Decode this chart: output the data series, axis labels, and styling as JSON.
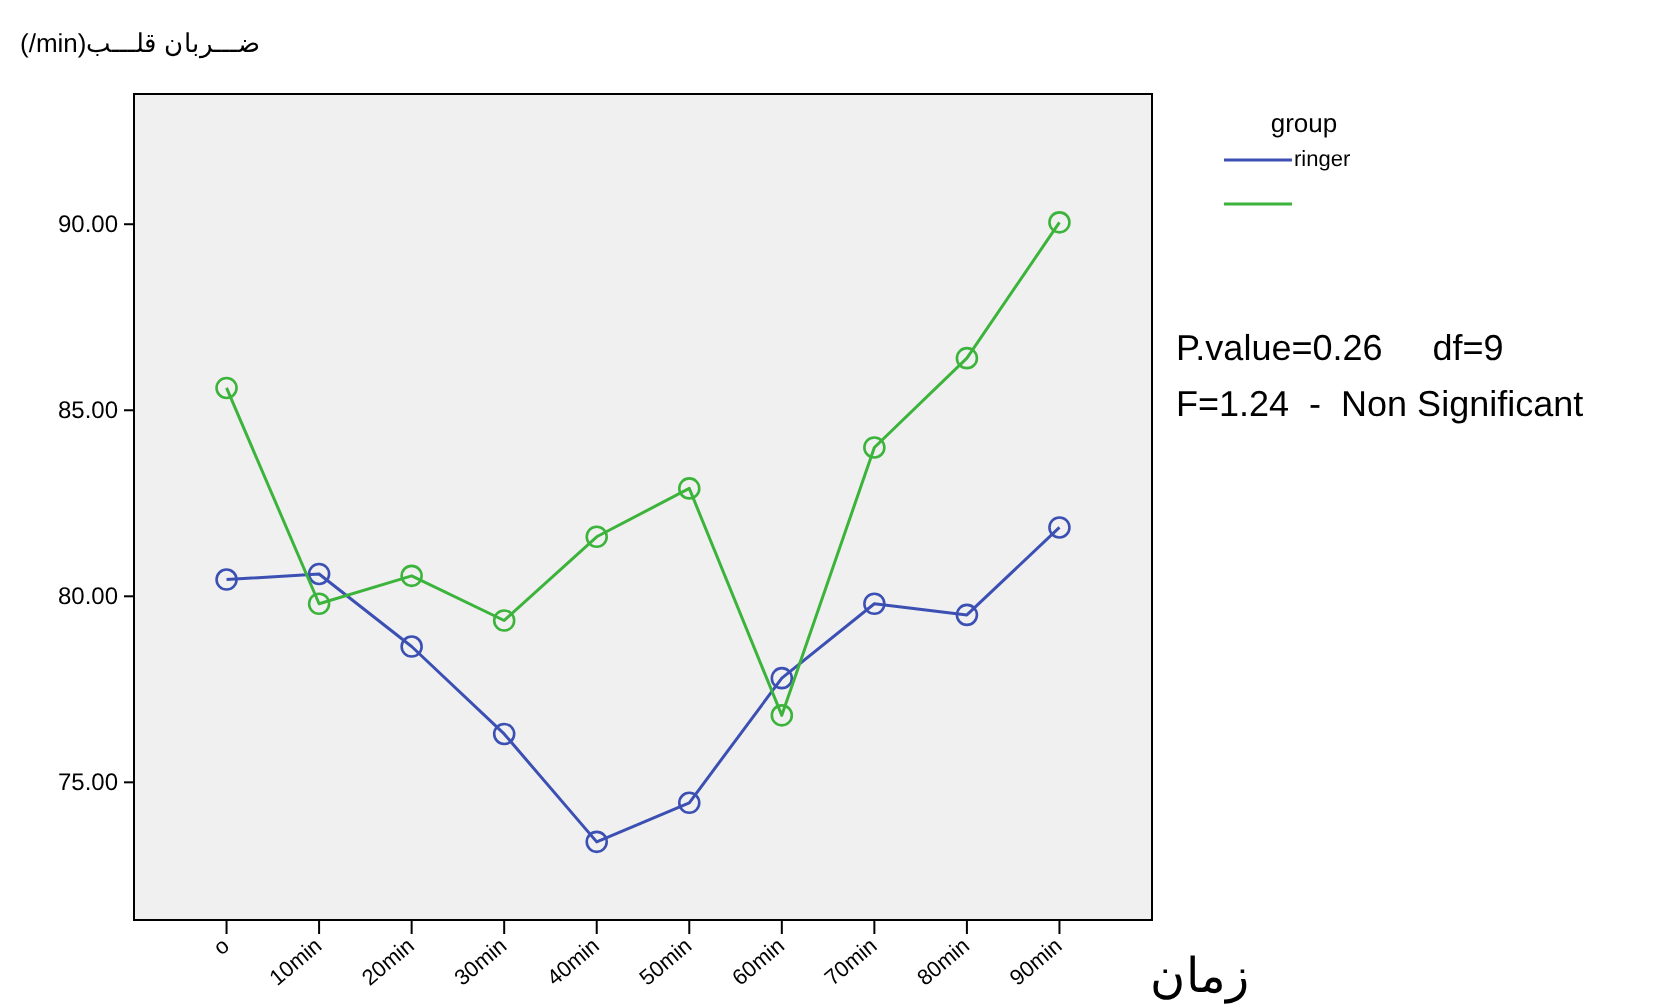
{
  "chart_data": {
    "type": "line",
    "ylabel": "(/min)ضـــربان قلـــب",
    "xlabel": "زمان",
    "legend_title": "group",
    "categories": [
      "o",
      "10min",
      "20min",
      "30min",
      "40min",
      "50min",
      "60min",
      "70min",
      "80min",
      "90min"
    ],
    "series": [
      {
        "name": "ringer",
        "color": "#3c50b4",
        "values": [
          80.45,
          80.6,
          78.65,
          76.3,
          73.4,
          74.45,
          77.8,
          79.8,
          79.5,
          81.85
        ]
      },
      {
        "color": "#3cb43c",
        "values": [
          85.6,
          79.8,
          80.55,
          79.35,
          81.6,
          82.9,
          76.8,
          84.0,
          86.4,
          90.05
        ]
      }
    ],
    "ylim": [
      71.3,
      93.5
    ],
    "yticks": [
      {
        "value": 75,
        "label": "75.00"
      },
      {
        "value": 80,
        "label": "80.00"
      },
      {
        "value": 85,
        "label": "85.00"
      },
      {
        "value": 90,
        "label": "90.00"
      }
    ],
    "marker": "circle",
    "grid": false,
    "legend": "top right",
    "annotations": [
      "P.value=0.26     df=9",
      "F=1.24  -  Non Significant"
    ]
  }
}
